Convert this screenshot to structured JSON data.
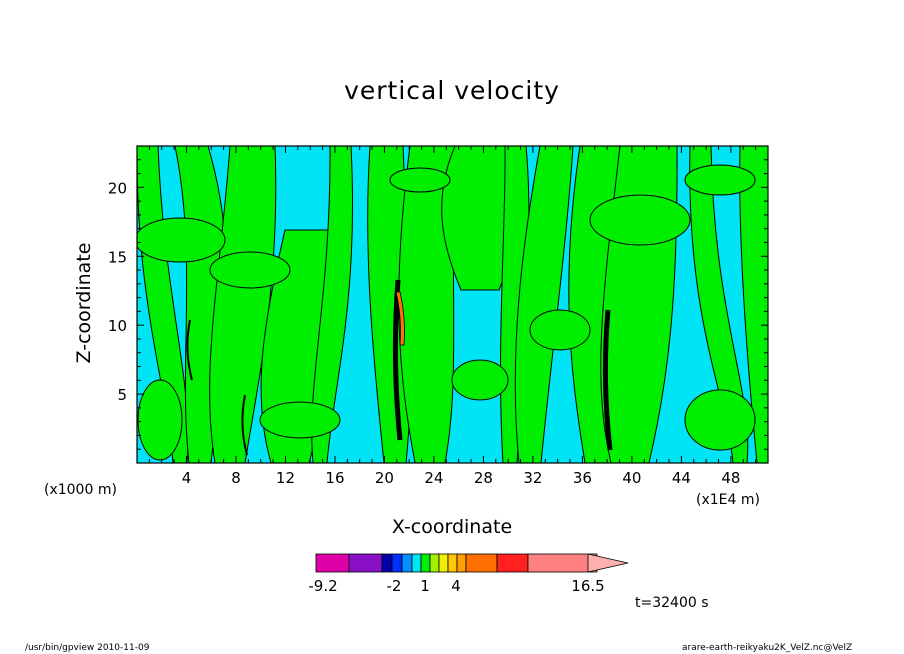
{
  "chart_data": {
    "type": "heatmap",
    "title": "vertical velocity",
    "xlabel": "X-coordinate",
    "ylabel": "Z-coordinate",
    "x_unit_left": "(x1000 m)",
    "x_unit_right": "(x1E4 m)",
    "xlim": [
      0,
      51
    ],
    "ylim": [
      0,
      23
    ],
    "xticks": [
      4,
      8,
      12,
      16,
      20,
      24,
      28,
      32,
      36,
      40,
      44,
      48
    ],
    "yticks": [
      5,
      10,
      15,
      20
    ],
    "background_color": "#00e5f5",
    "contour_color": "#000000",
    "positive_patch_color": "#00ee00",
    "colorbar": {
      "min": -9.2,
      "max": 16.5,
      "labels": [
        "-9.2",
        "-2",
        "1",
        "4",
        "16.5"
      ],
      "bins": [
        {
          "from": -9.2,
          "to": -7.5,
          "color": "#e000a8"
        },
        {
          "from": -7.5,
          "to": -5.8,
          "color": "#8a10c8"
        },
        {
          "from": -5.8,
          "to": -4.5,
          "color": "#0000aa"
        },
        {
          "from": -4.5,
          "to": -3.5,
          "color": "#0030ff"
        },
        {
          "from": -3.5,
          "to": -2.0,
          "color": "#0090ff"
        },
        {
          "from": -2.0,
          "to": -0.8,
          "color": "#00e5f5"
        },
        {
          "from": -0.8,
          "to": 0.2,
          "color": "#00ee00"
        },
        {
          "from": 0.2,
          "to": 1.0,
          "color": "#a0f000"
        },
        {
          "from": 1.0,
          "to": 2.0,
          "color": "#f0f000"
        },
        {
          "from": 2.0,
          "to": 3.0,
          "color": "#ffc800"
        },
        {
          "from": 3.0,
          "to": 4.0,
          "color": "#ffa000"
        },
        {
          "from": 4.0,
          "to": 6.5,
          "color": "#ff7000"
        },
        {
          "from": 6.5,
          "to": 8.5,
          "color": "#ff2020"
        },
        {
          "from": 8.5,
          "to": 16.5,
          "color": "#ff8080"
        }
      ],
      "extend_color": "#ffb0b0"
    }
  },
  "time_label": "t=32400 s",
  "footer_left": "/usr/bin/gpview   2010-11-09",
  "footer_right": "arare-earth-reikyaku2K_VelZ.nc@VelZ"
}
